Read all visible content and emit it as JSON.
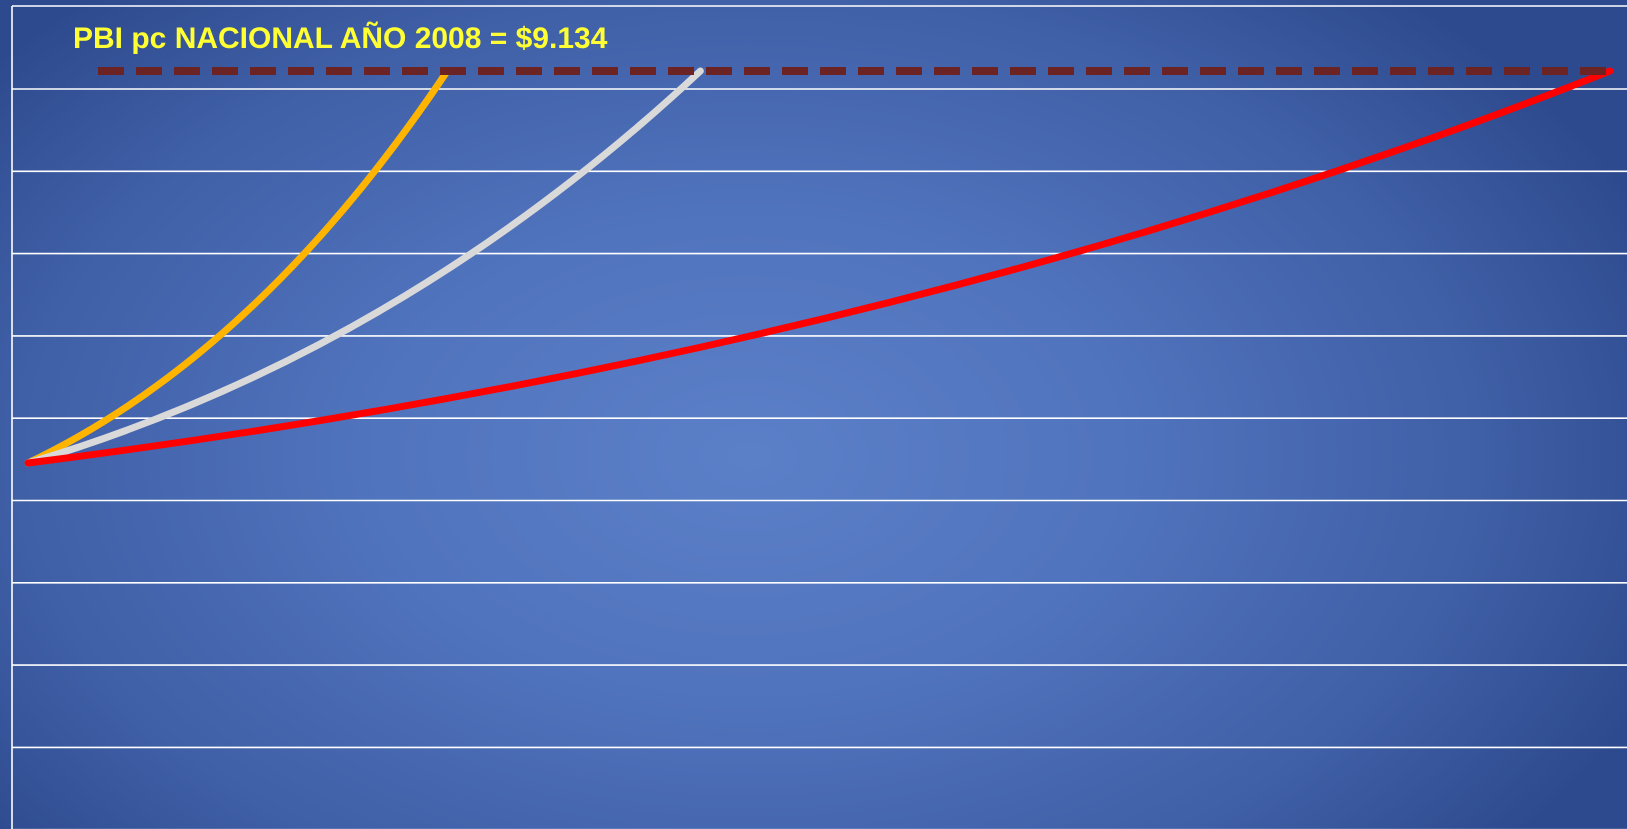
{
  "chart_data": {
    "type": "line",
    "title": "PBI pc NACIONAL AÑO 2008 = $9.134",
    "xlabel": "",
    "ylabel": "",
    "grid": true,
    "legend": "none",
    "y_gridlines": 10,
    "reference_line": {
      "style": "dashed",
      "color": "#6b2323"
    },
    "series": [
      {
        "color": "#ffb400",
        "shape": "convex",
        "end_fraction_x": 0.265
      },
      {
        "color": "#d9d9d9",
        "shape": "convex",
        "end_fraction_x": 0.425
      },
      {
        "color": "#ff0000",
        "shape": "convex",
        "end_fraction_x": 1.0
      }
    ]
  }
}
